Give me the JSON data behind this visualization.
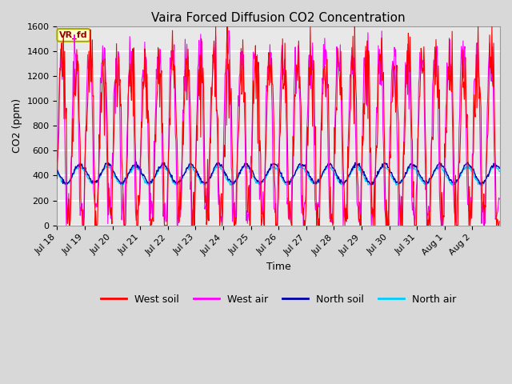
{
  "title": "Vaira Forced Diffusion CO2 Concentration",
  "xlabel": "Time",
  "ylabel": "CO2 (ppm)",
  "ylim": [
    0,
    1600
  ],
  "yticks": [
    0,
    200,
    400,
    600,
    800,
    1000,
    1200,
    1400,
    1600
  ],
  "legend_label": "VR_fd",
  "series_labels": [
    "West soil",
    "West air",
    "North soil",
    "North air"
  ],
  "series_colors": [
    "#ff0000",
    "#ff00ff",
    "#0000aa",
    "#00ccff"
  ],
  "background_color": "#d8d8d8",
  "plot_bg_color": "#e8e8e8",
  "grid_color": "#ffffff",
  "title_fontsize": 11,
  "axis_fontsize": 9,
  "tick_fontsize": 8,
  "legend_fontsize": 9
}
